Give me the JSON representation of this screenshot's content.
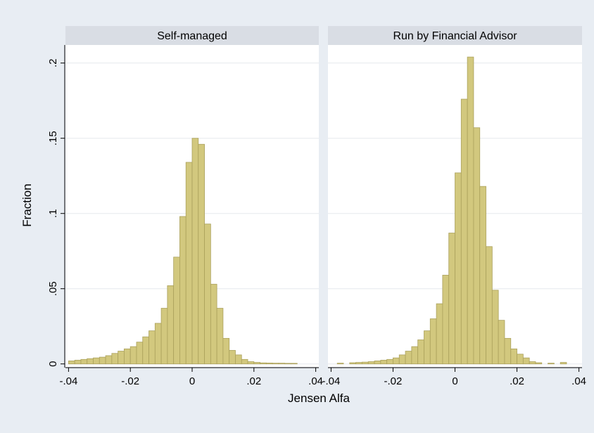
{
  "chart_data": {
    "type": "bar",
    "xlabel": "Jensen Alfa",
    "ylabel": "Fraction",
    "xlim": [
      -0.041,
      0.041
    ],
    "ylim": [
      -0.002,
      0.212
    ],
    "xticks": [
      -0.04,
      -0.02,
      0,
      0.02,
      0.04
    ],
    "xtick_labels": [
      "-.04",
      "-.02",
      "0",
      ".02",
      ".04"
    ],
    "yticks": [
      0,
      0.05,
      0.1,
      0.15,
      0.2
    ],
    "ytick_labels": [
      "0",
      ".05",
      ".1",
      ".15",
      ".2"
    ],
    "grid": true,
    "bar_color": "#d2c87e",
    "bar_edge_color": "#aba15c",
    "bin_width": 0.002,
    "panels": [
      {
        "title": "Self-managed",
        "bins": [
          [
            -0.04,
            0.002
          ],
          [
            -0.038,
            0.0025
          ],
          [
            -0.036,
            0.003
          ],
          [
            -0.034,
            0.0035
          ],
          [
            -0.032,
            0.004
          ],
          [
            -0.03,
            0.0045
          ],
          [
            -0.028,
            0.0055
          ],
          [
            -0.026,
            0.007
          ],
          [
            -0.024,
            0.0085
          ],
          [
            -0.022,
            0.01
          ],
          [
            -0.02,
            0.0115
          ],
          [
            -0.018,
            0.0145
          ],
          [
            -0.016,
            0.018
          ],
          [
            -0.014,
            0.022
          ],
          [
            -0.012,
            0.027
          ],
          [
            -0.01,
            0.037
          ],
          [
            -0.008,
            0.052
          ],
          [
            -0.006,
            0.071
          ],
          [
            -0.004,
            0.098
          ],
          [
            -0.002,
            0.134
          ],
          [
            0,
            0.15
          ],
          [
            0.002,
            0.146
          ],
          [
            0.004,
            0.093
          ],
          [
            0.006,
            0.053
          ],
          [
            0.008,
            0.037
          ],
          [
            0.01,
            0.017
          ],
          [
            0.012,
            0.009
          ],
          [
            0.014,
            0.006
          ],
          [
            0.016,
            0.003
          ],
          [
            0.018,
            0.0015
          ],
          [
            0.02,
            0.001
          ],
          [
            0.022,
            0.0007
          ],
          [
            0.024,
            0.0006
          ],
          [
            0.026,
            0.0005
          ],
          [
            0.028,
            0.0005
          ],
          [
            0.03,
            0.0004
          ],
          [
            0.032,
            0.0004
          ]
        ]
      },
      {
        "title": "Run by Financial Advisor",
        "bins": [
          [
            -0.038,
            0.0005
          ],
          [
            -0.034,
            0.0008
          ],
          [
            -0.032,
            0.001
          ],
          [
            -0.03,
            0.0012
          ],
          [
            -0.028,
            0.0015
          ],
          [
            -0.026,
            0.002
          ],
          [
            -0.024,
            0.0025
          ],
          [
            -0.022,
            0.003
          ],
          [
            -0.02,
            0.004
          ],
          [
            -0.018,
            0.006
          ],
          [
            -0.016,
            0.0085
          ],
          [
            -0.014,
            0.0115
          ],
          [
            -0.012,
            0.016
          ],
          [
            -0.01,
            0.022
          ],
          [
            -0.008,
            0.03
          ],
          [
            -0.006,
            0.04
          ],
          [
            -0.004,
            0.059
          ],
          [
            -0.002,
            0.087
          ],
          [
            0,
            0.127
          ],
          [
            0.002,
            0.176
          ],
          [
            0.004,
            0.204
          ],
          [
            0.006,
            0.157
          ],
          [
            0.008,
            0.118
          ],
          [
            0.01,
            0.078
          ],
          [
            0.012,
            0.049
          ],
          [
            0.014,
            0.029
          ],
          [
            0.016,
            0.017
          ],
          [
            0.018,
            0.01
          ],
          [
            0.02,
            0.0065
          ],
          [
            0.022,
            0.004
          ],
          [
            0.024,
            0.0015
          ],
          [
            0.026,
            0.0008
          ],
          [
            0.03,
            0.0005
          ],
          [
            0.034,
            0.001
          ]
        ]
      }
    ]
  }
}
